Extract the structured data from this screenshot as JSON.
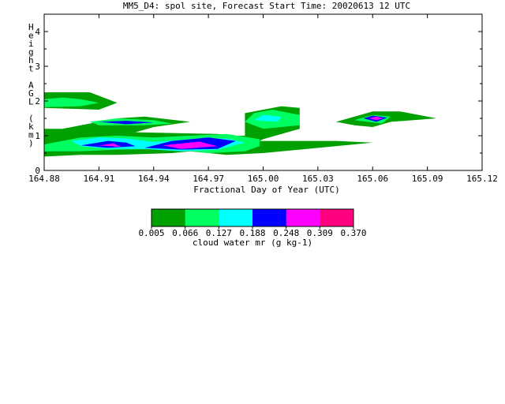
{
  "chart_data": {
    "type": "heatmap",
    "title": "MM5_D4: spol site,  Forecast Start Time: 20020613 12 UTC",
    "xlabel": "Fractional Day of Year (UTC)",
    "ylabel": "Height AGL (km)",
    "xlim": [
      164.88,
      165.12
    ],
    "ylim": [
      0,
      4.5
    ],
    "x_ticks": [
      "164.88",
      "164.91",
      "164.94",
      "164.97",
      "165.00",
      "165.03",
      "165.06",
      "165.09",
      "165.12"
    ],
    "y_ticks": [
      "0",
      "1",
      "2",
      "3",
      "4"
    ],
    "colorbar": {
      "label": "cloud water mr (g kg-1)",
      "levels": [
        "0.005",
        "0.066",
        "0.127",
        "0.188",
        "0.248",
        "0.309",
        "0.370"
      ],
      "colors": [
        "#00a000",
        "#00ff60",
        "#00ffff",
        "#0000ff",
        "#ff00ff",
        "#ff0080"
      ]
    },
    "contours": [
      {
        "level": 0,
        "points": [
          [
            164.88,
            2.25
          ],
          [
            164.9,
            2.25
          ],
          [
            164.905,
            2.25
          ],
          [
            164.91,
            2.15
          ],
          [
            164.92,
            1.95
          ],
          [
            164.91,
            1.75
          ],
          [
            164.88,
            1.8
          ]
        ]
      },
      {
        "level": 1,
        "points": [
          [
            164.88,
            2.05
          ],
          [
            164.89,
            2.1
          ],
          [
            164.9,
            2.05
          ],
          [
            164.91,
            1.95
          ],
          [
            164.9,
            1.85
          ],
          [
            164.88,
            1.82
          ]
        ]
      },
      {
        "level": 0,
        "points": [
          [
            164.88,
            1.2
          ],
          [
            164.89,
            1.2
          ],
          [
            164.92,
            1.5
          ],
          [
            164.935,
            1.55
          ],
          [
            164.96,
            1.4
          ],
          [
            164.94,
            1.25
          ],
          [
            164.93,
            1.1
          ],
          [
            164.975,
            1.05
          ],
          [
            164.985,
            1.0
          ],
          [
            164.99,
            1.0
          ],
          [
            164.99,
            1.65
          ],
          [
            165.01,
            1.85
          ],
          [
            165.02,
            1.8
          ],
          [
            165.02,
            1.2
          ],
          [
            165.0,
            0.9
          ],
          [
            164.998,
            0.85
          ],
          [
            165.04,
            0.85
          ],
          [
            165.06,
            0.8
          ],
          [
            165.0,
            0.5
          ],
          [
            164.98,
            0.45
          ],
          [
            164.96,
            0.55
          ],
          [
            164.95,
            0.5
          ],
          [
            164.92,
            0.45
          ],
          [
            164.9,
            0.45
          ],
          [
            164.88,
            0.4
          ]
        ]
      },
      {
        "level": 1,
        "points": [
          [
            164.88,
            0.75
          ],
          [
            164.9,
            0.95
          ],
          [
            164.92,
            1.0
          ],
          [
            164.94,
            0.95
          ],
          [
            164.96,
            1.0
          ],
          [
            164.98,
            1.05
          ],
          [
            164.998,
            0.9
          ],
          [
            164.998,
            0.7
          ],
          [
            164.99,
            0.55
          ],
          [
            164.97,
            0.5
          ],
          [
            164.95,
            0.62
          ],
          [
            164.92,
            0.6
          ],
          [
            164.9,
            0.55
          ],
          [
            164.88,
            0.55
          ]
        ]
      },
      {
        "level": 1,
        "points": [
          [
            164.905,
            1.4
          ],
          [
            164.92,
            1.5
          ],
          [
            164.94,
            1.45
          ],
          [
            164.95,
            1.35
          ],
          [
            164.935,
            1.3
          ],
          [
            164.91,
            1.3
          ]
        ]
      },
      {
        "level": 2,
        "points": [
          [
            164.895,
            0.85
          ],
          [
            164.91,
            0.95
          ],
          [
            164.925,
            0.92
          ],
          [
            164.94,
            0.82
          ],
          [
            164.96,
            0.9
          ],
          [
            164.98,
            0.92
          ],
          [
            164.99,
            0.8
          ],
          [
            164.975,
            0.6
          ],
          [
            164.955,
            0.55
          ],
          [
            164.935,
            0.62
          ],
          [
            164.915,
            0.62
          ],
          [
            164.9,
            0.7
          ]
        ]
      },
      {
        "level": 3,
        "points": [
          [
            164.9,
            0.72
          ],
          [
            164.915,
            0.85
          ],
          [
            164.925,
            0.8
          ],
          [
            164.93,
            0.7
          ],
          [
            164.915,
            0.65
          ]
        ]
      },
      {
        "level": 3,
        "points": [
          [
            164.935,
            0.65
          ],
          [
            164.95,
            0.85
          ],
          [
            164.97,
            0.95
          ],
          [
            164.985,
            0.85
          ],
          [
            164.975,
            0.62
          ],
          [
            164.955,
            0.6
          ]
        ]
      },
      {
        "level": 3,
        "points": [
          [
            164.91,
            1.4
          ],
          [
            164.925,
            1.43
          ],
          [
            164.94,
            1.38
          ],
          [
            164.925,
            1.33
          ]
        ]
      },
      {
        "level": 4,
        "points": [
          [
            164.91,
            0.72
          ],
          [
            164.918,
            0.78
          ],
          [
            164.922,
            0.68
          ]
        ]
      },
      {
        "level": 4,
        "points": [
          [
            164.945,
            0.72
          ],
          [
            164.965,
            0.83
          ],
          [
            164.975,
            0.7
          ],
          [
            164.955,
            0.62
          ]
        ]
      },
      {
        "level": 1,
        "points": [
          [
            164.99,
            1.4
          ],
          [
            164.995,
            1.65
          ],
          [
            165.005,
            1.75
          ],
          [
            165.02,
            1.6
          ],
          [
            165.02,
            1.3
          ],
          [
            165.0,
            1.2
          ]
        ]
      },
      {
        "level": 2,
        "points": [
          [
            164.995,
            1.45
          ],
          [
            165.0,
            1.6
          ],
          [
            165.01,
            1.55
          ],
          [
            165.008,
            1.4
          ]
        ]
      },
      {
        "level": 0,
        "points": [
          [
            165.04,
            1.4
          ],
          [
            165.06,
            1.7
          ],
          [
            165.075,
            1.7
          ],
          [
            165.095,
            1.5
          ],
          [
            165.07,
            1.4
          ],
          [
            165.06,
            1.25
          ],
          [
            165.05,
            1.3
          ]
        ]
      },
      {
        "level": 1,
        "points": [
          [
            165.05,
            1.45
          ],
          [
            165.06,
            1.6
          ],
          [
            165.07,
            1.55
          ],
          [
            165.065,
            1.35
          ]
        ]
      },
      {
        "level": 3,
        "points": [
          [
            165.055,
            1.5
          ],
          [
            165.06,
            1.58
          ],
          [
            165.068,
            1.52
          ],
          [
            165.062,
            1.4
          ]
        ]
      },
      {
        "level": 4,
        "points": [
          [
            165.058,
            1.5
          ],
          [
            165.062,
            1.55
          ],
          [
            165.066,
            1.5
          ],
          [
            165.062,
            1.45
          ]
        ]
      }
    ]
  }
}
